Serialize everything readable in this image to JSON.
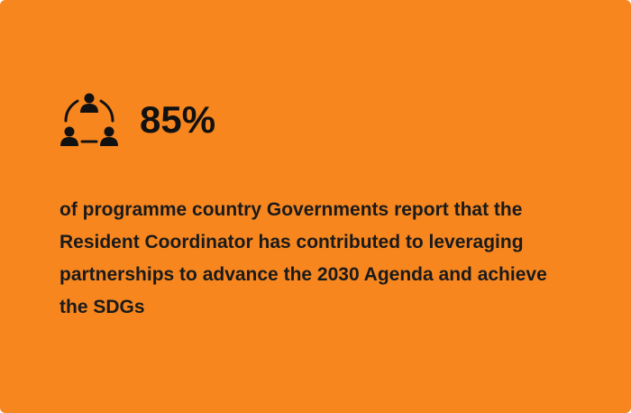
{
  "stat": {
    "value": "85%",
    "description": "of programme country Governments report that the Resident Coordinator has contributed to leveraging partnerships to advance the 2030 Agenda and achieve the SDGs"
  }
}
